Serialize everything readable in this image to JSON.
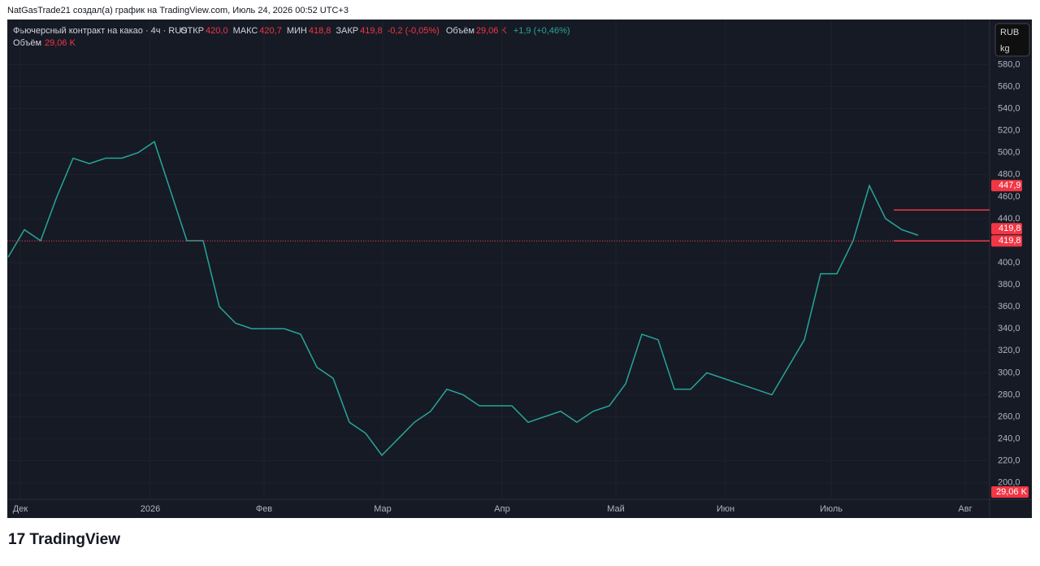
{
  "header": {
    "caption": "NatGasTrade21 создал(а) график на TradingView.com, Июль 24, 2026 00:52 UTC+3",
    "logo": "TradingView"
  },
  "chart_data": {
    "type": "line",
    "title": "Фьючерсный контракт на какао · 4ч · RUS",
    "ohlc": [
      {
        "label": "ОТКР",
        "value": "420,0"
      },
      {
        "label": "МАКС",
        "value": "420,7"
      },
      {
        "label": "МИН",
        "value": "418,8"
      },
      {
        "label": "ЗАКР",
        "value": "419,8"
      }
    ],
    "change": "-0,2 (-0,05%)",
    "volume_label": "Объём",
    "volume_value": "29,06 K",
    "volume_change": "+1,9 (+0,46%)",
    "currency": "RUB",
    "unit": "kg",
    "x": [
      0,
      1,
      2,
      3,
      4,
      5,
      6,
      7,
      8,
      9,
      10,
      11,
      12,
      13,
      14,
      15,
      16,
      17,
      18,
      19,
      20,
      21,
      22,
      23,
      24,
      25,
      26,
      27,
      28,
      29,
      30,
      31,
      32,
      33,
      34,
      35,
      36,
      37,
      38,
      39,
      40,
      41,
      42,
      43,
      44,
      45,
      46,
      47,
      48,
      49,
      50,
      51,
      52,
      53,
      54,
      55,
      56
    ],
    "series": [
      {
        "name": "Фьючерсный контракт на какао",
        "color": "#26a69a",
        "values": [
          405,
          430,
          420,
          460,
          495,
          490,
          495,
          495,
          500,
          510,
          465,
          420,
          420,
          360,
          345,
          340,
          340,
          340,
          335,
          305,
          295,
          255,
          245,
          225,
          240,
          255,
          265,
          285,
          280,
          270,
          270,
          270,
          255,
          260,
          265,
          255,
          265,
          270,
          290,
          335,
          330,
          285,
          285,
          300,
          295,
          290,
          285,
          280,
          305,
          330,
          390,
          390,
          420,
          470,
          440,
          430,
          425
        ]
      }
    ],
    "xlim": [
      -0.05,
      60.4
    ],
    "xticks": [
      {
        "value": 0.75,
        "label": "Дек"
      },
      {
        "value": 8.75,
        "label": "2026"
      },
      {
        "value": 15.75,
        "label": "Фев"
      },
      {
        "value": 23.05,
        "label": "Мар"
      },
      {
        "value": 30.4,
        "label": "Апр"
      },
      {
        "value": 37.4,
        "label": "Май"
      },
      {
        "value": 44.15,
        "label": "Июн"
      },
      {
        "value": 50.65,
        "label": "Июль"
      },
      {
        "value": 58.9,
        "label": "Авг"
      }
    ],
    "ylim": [
      185,
      621
    ],
    "yticks": [
      {
        "value": 200,
        "label": "200,0"
      },
      {
        "value": 220,
        "label": "220,0"
      },
      {
        "value": 240,
        "label": "240,0"
      },
      {
        "value": 260,
        "label": "260,0"
      },
      {
        "value": 280,
        "label": "280,0"
      },
      {
        "value": 300,
        "label": "300,0"
      },
      {
        "value": 320,
        "label": "320,0"
      },
      {
        "value": 340,
        "label": "340,0"
      },
      {
        "value": 360,
        "label": "360,0"
      },
      {
        "value": 380,
        "label": "380,0"
      },
      {
        "value": 400,
        "label": "400,0"
      },
      {
        "value": 420,
        "label": "420,0"
      },
      {
        "value": 440,
        "label": "440,0"
      },
      {
        "value": 460,
        "label": "460,0"
      },
      {
        "value": 480,
        "label": "480,0"
      },
      {
        "value": 500,
        "label": "500,0"
      },
      {
        "value": 520,
        "label": "520,0"
      },
      {
        "value": 540,
        "label": "540,0"
      },
      {
        "value": 560,
        "label": "560,0"
      },
      {
        "value": 580,
        "label": "580,0"
      }
    ],
    "price_marks": [
      {
        "value": 447.9,
        "label": "447,9"
      },
      {
        "value": 419.8,
        "label": "419,8"
      },
      {
        "value": 419.8,
        "label": "419,8"
      }
    ],
    "grid": true
  }
}
